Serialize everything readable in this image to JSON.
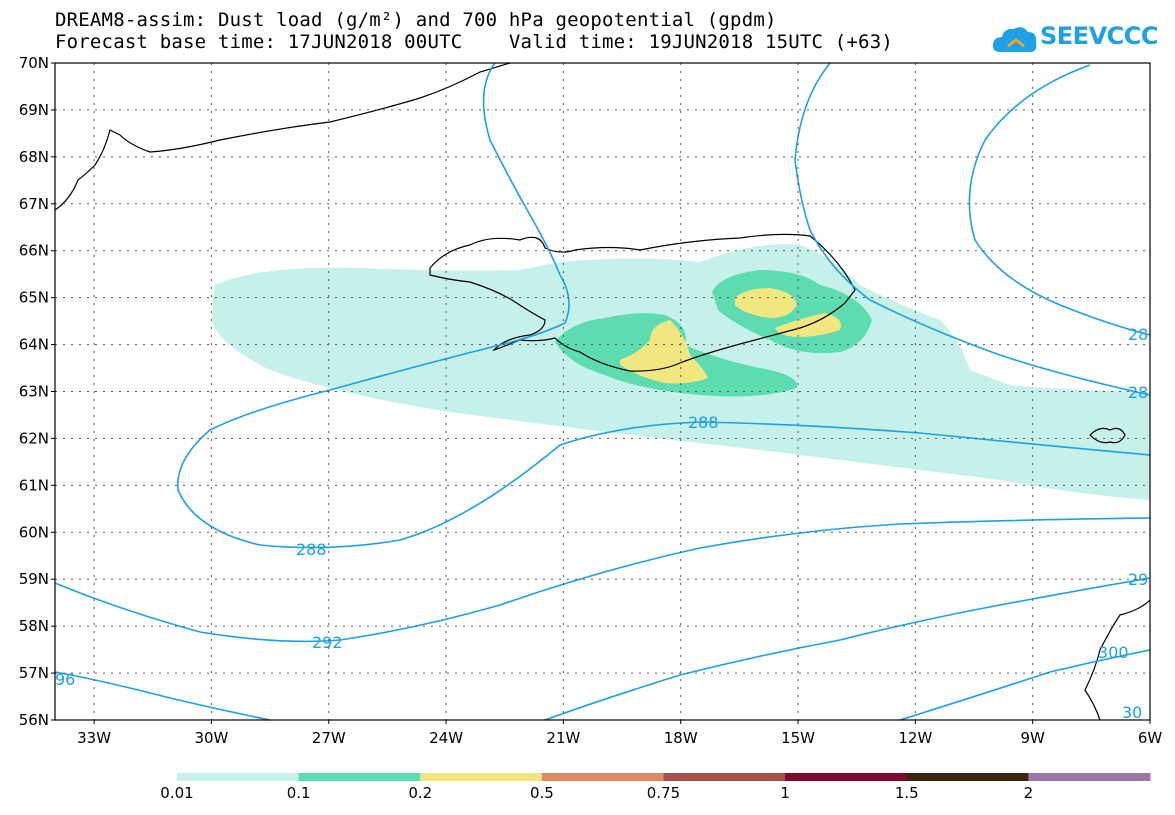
{
  "title": {
    "line1": "DREAM8-assim: Dust load (g/m²) and 700 hPa geopotential (gpdm)",
    "line2": "Forecast base time: 17JUN2018 00UTC    Valid time: 19JUN2018 15UTC (+63)"
  },
  "logo": {
    "text": "SEEVCCC"
  },
  "map": {
    "lat_labels": [
      "70N",
      "69N",
      "68N",
      "67N",
      "66N",
      "65N",
      "64N",
      "63N",
      "62N",
      "61N",
      "60N",
      "59N",
      "58N",
      "57N",
      "56N"
    ],
    "lon_labels": [
      "33W",
      "30W",
      "27W",
      "24W",
      "21W",
      "18W",
      "15W",
      "12W",
      "9W",
      "6W"
    ],
    "lat_range": [
      56,
      70
    ],
    "lon_range": [
      -34,
      -6
    ],
    "contour_color": "#1ea0e6",
    "contour_labels": [
      "288",
      "288",
      "292",
      "96",
      "28",
      "28",
      "29",
      "300",
      "30"
    ]
  },
  "colorbar": {
    "ticks": [
      "0.01",
      "0.1",
      "0.2",
      "0.5",
      "0.75",
      "1",
      "1.5",
      "2"
    ],
    "colors": [
      "#c6f1ea",
      "#5cdcb0",
      "#f2e680",
      "#dd8a64",
      "#aa4e47",
      "#7e0a2e",
      "#3a2410",
      "#9a78a8"
    ]
  }
}
